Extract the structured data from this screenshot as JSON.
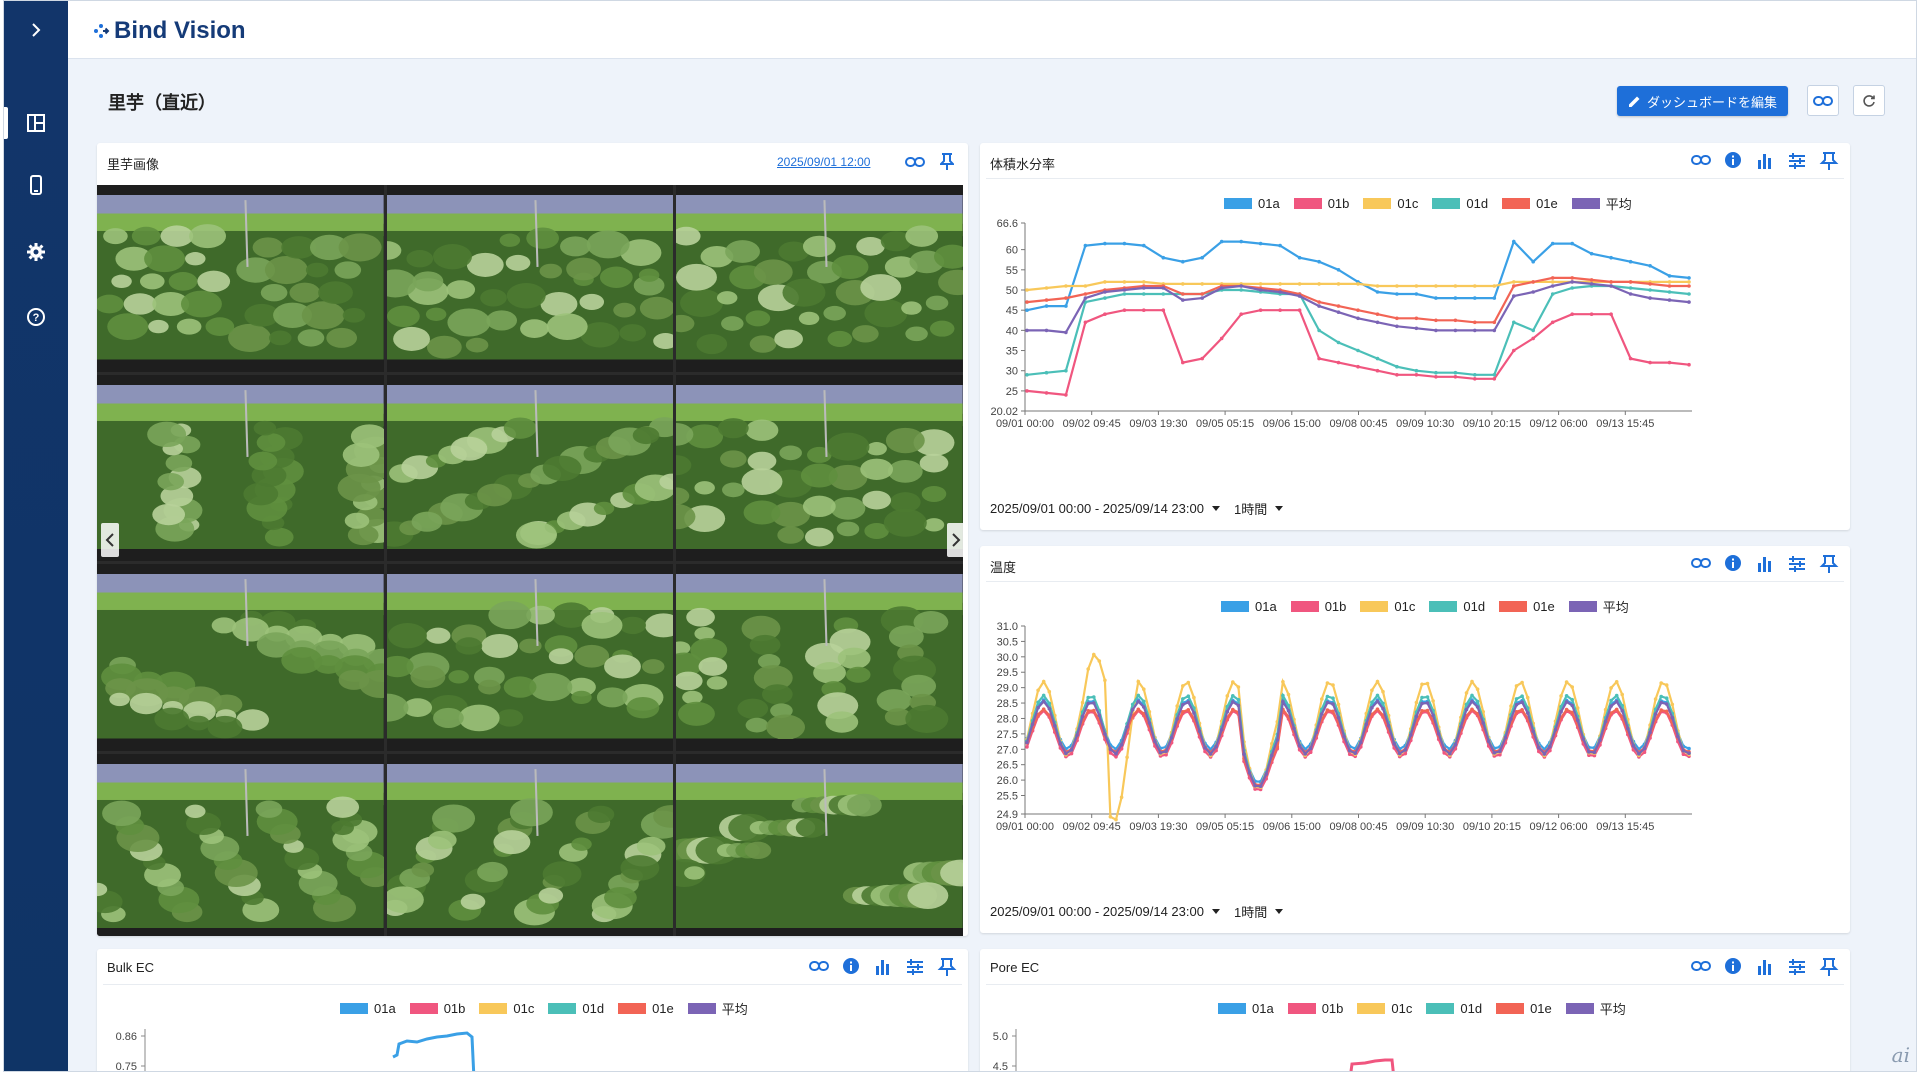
{
  "app": {
    "name": "Bind Vision"
  },
  "sidebar": {
    "items": [
      {
        "icon": "dashboard-icon",
        "active": true
      },
      {
        "icon": "device-icon",
        "active": false
      },
      {
        "icon": "gear-icon",
        "active": false
      },
      {
        "icon": "help-icon",
        "active": false
      }
    ]
  },
  "page": {
    "title": "里芋（直近）"
  },
  "toolbar": {
    "edit_label": "ダッシュボードを編集"
  },
  "image_panel": {
    "title": "里芋画像",
    "date": "2025/09/01 12:00"
  },
  "legend_labels": [
    "01a",
    "01b",
    "01c",
    "01d",
    "01e",
    "平均"
  ],
  "colors": {
    "01a": "#3aa0e6",
    "01b": "#f0567f",
    "01c": "#f8c85a",
    "01d": "#4bbfb8",
    "01e": "#f26455",
    "avg": "#7b64b5",
    "accent": "#1e6fd9",
    "sidebar": "#12356a"
  },
  "vwc_panel": {
    "title": "体積水分率",
    "range": "2025/09/01 00:00 - 2025/09/14 23:00",
    "interval": "1時間",
    "y_ticks": [
      "66.6",
      "60",
      "55",
      "50",
      "45",
      "40",
      "35",
      "30",
      "25",
      "20.02"
    ],
    "x_ticks": [
      "09/01 00:00",
      "09/02 09:45",
      "09/03 19:30",
      "09/05 05:15",
      "09/06 15:00",
      "09/08 00:45",
      "09/09 10:30",
      "09/10 20:15",
      "09/12 06:00",
      "09/13 15:45"
    ]
  },
  "temp_panel": {
    "title": "温度",
    "range": "2025/09/01 00:00 - 2025/09/14 23:00",
    "interval": "1時間",
    "y_ticks": [
      "31.0",
      "30.5",
      "30.0",
      "29.5",
      "29.0",
      "28.5",
      "28.0",
      "27.5",
      "27.0",
      "26.5",
      "26.0",
      "25.5",
      "24.9"
    ],
    "x_ticks": [
      "09/01 00:00",
      "09/02 09:45",
      "09/03 19:30",
      "09/05 05:15",
      "09/06 15:00",
      "09/08 00:45",
      "09/09 10:30",
      "09/10 20:15",
      "09/12 06:00",
      "09/13 15:45"
    ]
  },
  "bulk_panel": {
    "title": "Bulk EC",
    "y_ticks": [
      "0.86",
      "0.75"
    ]
  },
  "pore_panel": {
    "title": "Pore EC",
    "y_ticks": [
      "5.0",
      "4.5"
    ]
  },
  "watermark": "ai",
  "chart_data": [
    {
      "type": "line",
      "title": "体積水分率",
      "ylim": [
        20.02,
        66.6
      ],
      "x_range": [
        "09/01 00:00",
        "09/14 23:00"
      ],
      "series": [
        {
          "name": "01a",
          "color": "#3aa0e6",
          "values": [
            45,
            46,
            46,
            61,
            61.5,
            61.5,
            61,
            58,
            57,
            58,
            62,
            62,
            61.5,
            61,
            58,
            57,
            55,
            52,
            49.5,
            49,
            49,
            48,
            48,
            48,
            48,
            62,
            57,
            61.5,
            61.5,
            59,
            58,
            57,
            56,
            53.5,
            53
          ]
        },
        {
          "name": "01b",
          "color": "#f0567f",
          "values": [
            25,
            24.5,
            24,
            42,
            44,
            45,
            45,
            45,
            32,
            33,
            38,
            44,
            45,
            45,
            45,
            33,
            32,
            31,
            30,
            29,
            29,
            28.5,
            28.5,
            28,
            28,
            35,
            38,
            42,
            44,
            44,
            44,
            33,
            32,
            32,
            31.5
          ]
        },
        {
          "name": "01c",
          "color": "#f8c85a",
          "values": [
            50,
            50.5,
            51,
            51,
            52,
            52,
            52,
            51.5,
            51.5,
            51.5,
            51.5,
            51.5,
            51.5,
            51.5,
            51.5,
            51.5,
            51.5,
            51.5,
            51,
            51,
            51,
            51,
            51,
            51,
            51,
            52,
            52,
            52,
            52,
            52,
            52,
            52,
            52,
            52,
            52
          ]
        },
        {
          "name": "01d",
          "color": "#4bbfb8",
          "values": [
            29,
            29.5,
            30,
            47,
            48,
            49,
            49,
            49,
            49,
            49,
            50,
            50,
            49.5,
            49,
            49,
            40,
            37,
            35,
            33,
            31,
            30,
            29.5,
            29.5,
            29,
            29,
            42,
            40,
            49,
            50.5,
            51,
            51,
            50.5,
            50,
            49.5,
            49
          ]
        },
        {
          "name": "01e",
          "color": "#f26455",
          "values": [
            47,
            47.5,
            48,
            49,
            50,
            50.5,
            51,
            51,
            49,
            49,
            51,
            51,
            50.5,
            50,
            49,
            47,
            46,
            45,
            44,
            43,
            43,
            42.5,
            42.5,
            42,
            42,
            51,
            52,
            53,
            53,
            52.5,
            52,
            52,
            51.5,
            51,
            51
          ]
        },
        {
          "name": "平均",
          "color": "#7b64b5",
          "values": [
            40,
            40,
            39.5,
            48,
            49.5,
            50,
            50.5,
            50.5,
            47.5,
            48,
            50.5,
            51,
            50,
            49.5,
            48.5,
            46,
            44.5,
            43,
            42,
            41,
            40.5,
            40,
            40,
            40,
            40,
            48.5,
            49.5,
            51,
            52,
            51.5,
            51,
            49,
            48,
            47.5,
            47
          ]
        }
      ]
    },
    {
      "type": "line",
      "title": "温度",
      "ylim": [
        24.9,
        31.0
      ],
      "x_range": [
        "09/01 00:00",
        "09/14 23:00"
      ],
      "series": [
        {
          "name": "01a",
          "color": "#3aa0e6",
          "amp": 0.8,
          "base": 27.8,
          "values": []
        },
        {
          "name": "01b",
          "color": "#f0567f",
          "amp": 0.75,
          "base": 27.5,
          "values": []
        },
        {
          "name": "01c",
          "color": "#f8c85a",
          "amp": 1.2,
          "base": 28.0,
          "values": []
        },
        {
          "name": "01d",
          "color": "#4bbfb8",
          "amp": 0.95,
          "base": 27.8,
          "values": []
        },
        {
          "name": "01e",
          "color": "#f26455",
          "amp": 0.7,
          "base": 27.6,
          "values": []
        },
        {
          "name": "平均",
          "color": "#7b64b5",
          "amp": 0.85,
          "base": 27.7,
          "values": []
        }
      ]
    }
  ]
}
